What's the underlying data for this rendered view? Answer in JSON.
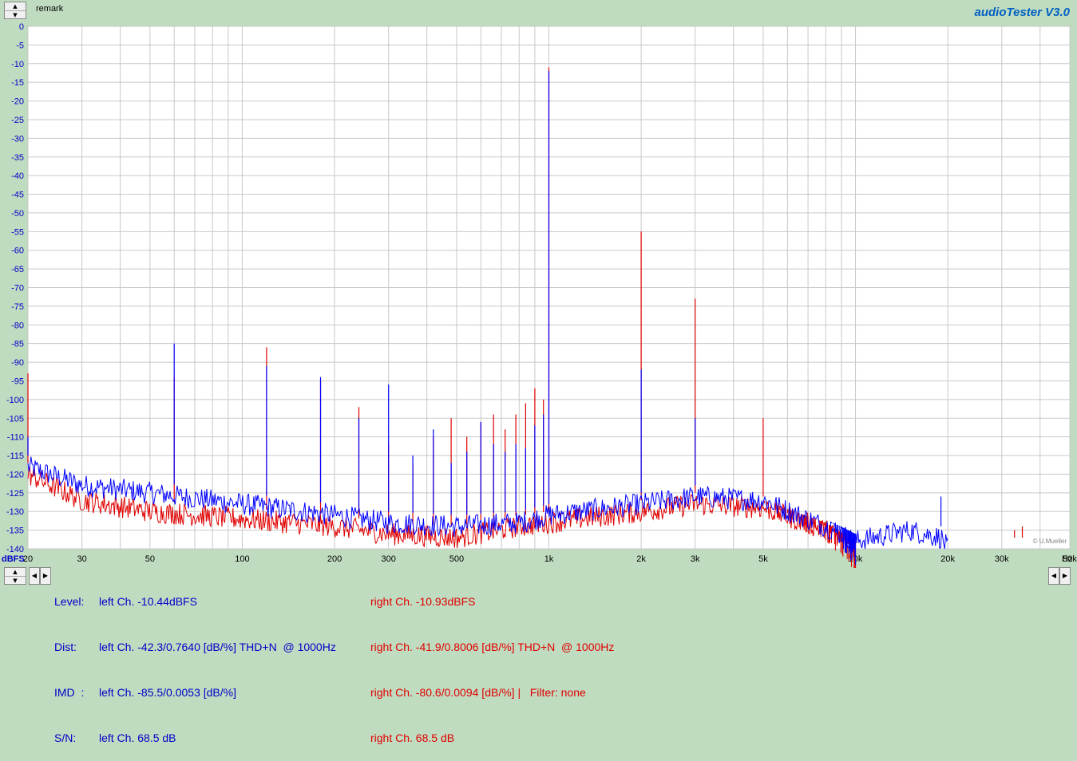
{
  "app": {
    "brand": "audioTester  V3.0",
    "remark_label": "remark"
  },
  "colors": {
    "left": "#0000ff",
    "right": "#e00000",
    "background": "#c0dcc0",
    "plot_bg": "#ffffff",
    "grid": "#c8c8c8"
  },
  "chart_data": {
    "type": "line",
    "title": "",
    "xlabel": "Hz",
    "ylabel": "dBFS",
    "x_scale": "log",
    "xlim": [
      20,
      50000
    ],
    "ylim": [
      -140,
      0
    ],
    "grid": true,
    "y_ticks": [
      0,
      -5,
      -10,
      -15,
      -20,
      -25,
      -30,
      -35,
      -40,
      -45,
      -50,
      -55,
      -60,
      -65,
      -70,
      -75,
      -80,
      -85,
      -90,
      -95,
      -100,
      -105,
      -110,
      -115,
      -120,
      -125,
      -130,
      -135,
      -140
    ],
    "x_ticks": [
      {
        "value": 20,
        "label": "20"
      },
      {
        "value": 30,
        "label": "30"
      },
      {
        "value": 50,
        "label": "50"
      },
      {
        "value": 100,
        "label": "100"
      },
      {
        "value": 200,
        "label": "200"
      },
      {
        "value": 300,
        "label": "300"
      },
      {
        "value": 500,
        "label": "500"
      },
      {
        "value": 1000,
        "label": "1k"
      },
      {
        "value": 2000,
        "label": "2k"
      },
      {
        "value": 3000,
        "label": "3k"
      },
      {
        "value": 5000,
        "label": "5k"
      },
      {
        "value": 10000,
        "label": "10k"
      },
      {
        "value": 20000,
        "label": "20k"
      },
      {
        "value": 30000,
        "label": "30k"
      },
      {
        "value": 50000,
        "label": "50k"
      }
    ],
    "series": [
      {
        "channel": "left",
        "noise": [
          [
            20,
            -118
          ],
          [
            30,
            -123
          ],
          [
            50,
            -125
          ],
          [
            100,
            -128
          ],
          [
            200,
            -131
          ],
          [
            300,
            -133
          ],
          [
            500,
            -134
          ],
          [
            800,
            -133
          ],
          [
            1000,
            -131
          ],
          [
            2000,
            -128
          ],
          [
            3000,
            -126
          ],
          [
            5000,
            -127
          ],
          [
            8000,
            -134
          ],
          [
            10000,
            -138
          ],
          [
            15000,
            -135
          ],
          [
            19000,
            -137
          ],
          [
            20000,
            -140
          ]
        ],
        "envelope": [
          [
            500,
            -116
          ],
          [
            1000,
            -111
          ],
          [
            2000,
            -109
          ],
          [
            3000,
            -110
          ],
          [
            5000,
            -117
          ],
          [
            8000,
            -126
          ],
          [
            10000,
            -140
          ]
        ],
        "peaks": [
          [
            20,
            -110
          ],
          [
            60,
            -85
          ],
          [
            120,
            -91
          ],
          [
            180,
            -94
          ],
          [
            240,
            -105
          ],
          [
            300,
            -96
          ],
          [
            360,
            -115
          ],
          [
            420,
            -108
          ],
          [
            480,
            -117
          ],
          [
            540,
            -114
          ],
          [
            600,
            -106
          ],
          [
            660,
            -112
          ],
          [
            720,
            -114
          ],
          [
            780,
            -112
          ],
          [
            840,
            -113
          ],
          [
            900,
            -107
          ],
          [
            960,
            -104
          ],
          [
            1000,
            -12
          ],
          [
            2000,
            -92
          ],
          [
            3000,
            -105
          ],
          [
            19000,
            -126
          ]
        ]
      },
      {
        "channel": "right",
        "noise": [
          [
            20,
            -120
          ],
          [
            30,
            -127
          ],
          [
            50,
            -130
          ],
          [
            100,
            -132
          ],
          [
            200,
            -134
          ],
          [
            300,
            -136
          ],
          [
            500,
            -137
          ],
          [
            800,
            -134
          ],
          [
            1000,
            -133
          ],
          [
            2000,
            -130
          ],
          [
            3000,
            -128
          ],
          [
            5000,
            -129
          ],
          [
            8000,
            -135
          ],
          [
            10000,
            -140
          ]
        ],
        "envelope": [
          [
            500,
            -122
          ],
          [
            1000,
            -118
          ],
          [
            2000,
            -115
          ],
          [
            3000,
            -116
          ],
          [
            5000,
            -124
          ],
          [
            8000,
            -132
          ],
          [
            10000,
            -140
          ]
        ],
        "peaks": [
          [
            20,
            -93
          ],
          [
            60,
            -94
          ],
          [
            120,
            -86
          ],
          [
            180,
            -95
          ],
          [
            240,
            -102
          ],
          [
            300,
            -112
          ],
          [
            360,
            -117
          ],
          [
            420,
            -110
          ],
          [
            480,
            -105
          ],
          [
            540,
            -110
          ],
          [
            600,
            -106
          ],
          [
            660,
            -104
          ],
          [
            720,
            -108
          ],
          [
            780,
            -104
          ],
          [
            840,
            -101
          ],
          [
            900,
            -97
          ],
          [
            960,
            -100
          ],
          [
            1000,
            -11
          ],
          [
            2000,
            -55
          ],
          [
            3000,
            -73
          ],
          [
            5000,
            -105
          ],
          [
            33000,
            -135
          ],
          [
            35000,
            -134
          ]
        ]
      }
    ]
  },
  "stats": {
    "left": [
      {
        "label": "Level:",
        "value": "left Ch. -10.44dBFS"
      },
      {
        "label": "Dist:",
        "value": "left Ch. -42.3/0.7640 [dB/%] THD+N  @ 1000Hz"
      },
      {
        "label": "IMD  :",
        "value": "left Ch. -85.5/0.0053 [dB/%]"
      },
      {
        "label": "S/N:",
        "value": "left Ch. 68.5 dB"
      }
    ],
    "right": [
      "right Ch. -10.93dBFS",
      "right Ch. -41.9/0.8006 [dB/%] THD+N  @ 1000Hz",
      "right Ch. -80.6/0.0094 [dB/%] |   Filter: none",
      "right Ch. 68.5 dB"
    ]
  },
  "credit": "© U.Mueller"
}
